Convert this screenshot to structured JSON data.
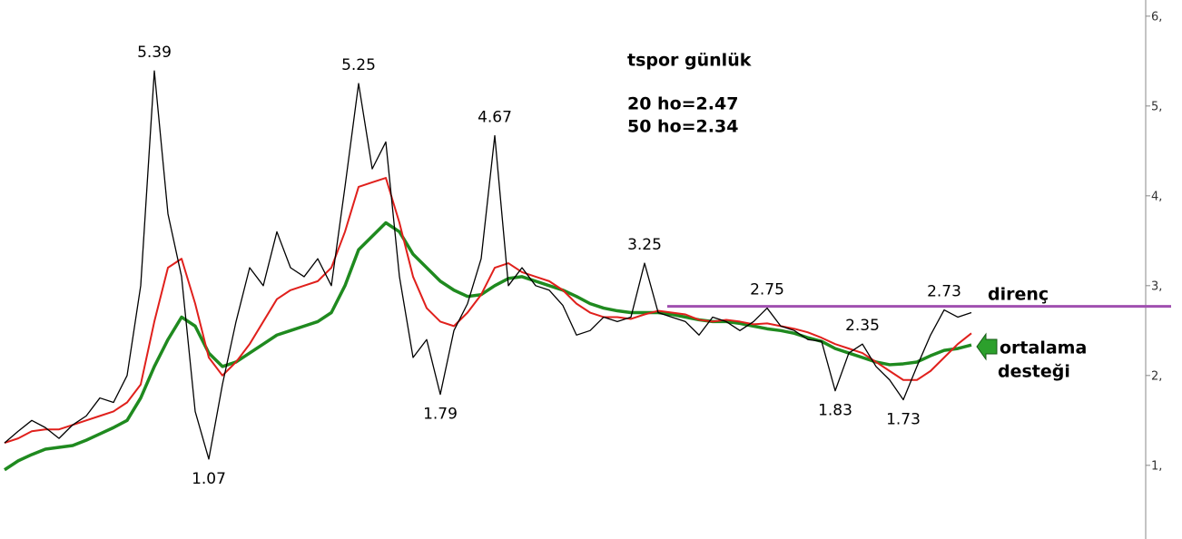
{
  "chart_data": {
    "type": "line",
    "notes": [
      "tspor günlük",
      "20 ho=2.47",
      "50 ho=2.34"
    ],
    "categories": [
      null,
      null,
      null,
      null,
      null,
      null,
      null,
      null,
      null,
      null,
      null,
      null,
      null,
      null,
      null,
      null,
      null,
      null,
      null,
      null,
      null,
      null,
      null,
      null,
      null,
      null,
      null,
      null,
      null,
      null,
      null,
      null,
      null,
      null,
      null,
      null,
      null,
      null,
      null,
      null,
      null,
      null,
      null,
      null,
      null,
      null,
      null,
      null,
      null,
      null,
      null,
      null,
      null,
      null,
      null,
      null,
      null,
      null,
      null,
      null,
      null,
      null,
      null,
      null,
      null,
      null,
      null,
      null,
      null,
      null,
      null,
      null
    ],
    "series": [
      {
        "color": "#000000",
        "values": [
          1.25,
          1.38,
          1.5,
          1.42,
          1.3,
          1.45,
          1.55,
          1.75,
          1.7,
          2.0,
          3.0,
          5.39,
          3.8,
          3.1,
          1.6,
          1.07,
          1.9,
          2.6,
          3.2,
          3.0,
          3.6,
          3.2,
          3.1,
          3.3,
          3.0,
          4.1,
          5.25,
          4.3,
          4.6,
          3.1,
          2.2,
          2.4,
          1.79,
          2.5,
          2.8,
          3.3,
          4.67,
          3.0,
          3.2,
          3.0,
          2.95,
          2.78,
          2.45,
          2.5,
          2.65,
          2.6,
          2.65,
          3.25,
          2.7,
          2.65,
          2.6,
          2.45,
          2.65,
          2.6,
          2.5,
          2.6,
          2.75,
          2.55,
          2.5,
          2.4,
          2.38,
          1.83,
          2.25,
          2.35,
          2.1,
          1.95,
          1.73,
          2.1,
          2.45,
          2.73,
          2.65,
          2.7
        ]
      },
      {
        "color": "#e0201c",
        "values": [
          1.25,
          1.3,
          1.38,
          1.4,
          1.4,
          1.45,
          1.5,
          1.55,
          1.6,
          1.7,
          1.9,
          2.6,
          3.2,
          3.3,
          2.8,
          2.2,
          2.0,
          2.15,
          2.35,
          2.6,
          2.85,
          2.95,
          3.0,
          3.05,
          3.2,
          3.6,
          4.1,
          4.15,
          4.2,
          3.7,
          3.1,
          2.75,
          2.6,
          2.55,
          2.7,
          2.9,
          3.2,
          3.25,
          3.15,
          3.1,
          3.05,
          2.95,
          2.8,
          2.7,
          2.65,
          2.65,
          2.63,
          2.68,
          2.72,
          2.7,
          2.68,
          2.62,
          2.6,
          2.62,
          2.6,
          2.57,
          2.58,
          2.55,
          2.52,
          2.48,
          2.42,
          2.35,
          2.3,
          2.25,
          2.15,
          2.05,
          1.95,
          1.95,
          2.05,
          2.2,
          2.35,
          2.47
        ]
      },
      {
        "color": "#1f8a1f",
        "values": [
          0.95,
          1.05,
          1.12,
          1.18,
          1.2,
          1.22,
          1.28,
          1.35,
          1.42,
          1.5,
          1.75,
          2.1,
          2.4,
          2.65,
          2.55,
          2.25,
          2.1,
          2.15,
          2.25,
          2.35,
          2.45,
          2.5,
          2.55,
          2.6,
          2.7,
          3.0,
          3.4,
          3.55,
          3.7,
          3.6,
          3.35,
          3.2,
          3.05,
          2.95,
          2.88,
          2.9,
          3.0,
          3.08,
          3.1,
          3.05,
          3.0,
          2.95,
          2.88,
          2.8,
          2.75,
          2.72,
          2.7,
          2.7,
          2.7,
          2.68,
          2.65,
          2.62,
          2.6,
          2.6,
          2.58,
          2.55,
          2.52,
          2.5,
          2.47,
          2.42,
          2.38,
          2.3,
          2.25,
          2.2,
          2.15,
          2.12,
          2.13,
          2.15,
          2.22,
          2.28,
          2.3,
          2.34
        ]
      }
    ],
    "annotations": [
      5.39,
      5.25,
      4.67,
      3.25,
      2.75,
      2.35,
      2.73,
      1.07,
      1.79,
      1.83,
      1.73
    ],
    "resistance": {
      "value": 2.77,
      "label": "direnç",
      "color": "#a050b0"
    },
    "support_label": [
      "ortalama",
      "desteği"
    ],
    "ylim": [
      0.18,
      6.18
    ],
    "yticks": [
      {
        "value": 1,
        "label": "1,"
      },
      {
        "value": 2,
        "label": "2,"
      },
      {
        "value": 3,
        "label": "3,"
      },
      {
        "value": 4,
        "label": "4,"
      },
      {
        "value": 5,
        "label": "5,"
      },
      {
        "value": 6,
        "label": "6,"
      }
    ]
  }
}
